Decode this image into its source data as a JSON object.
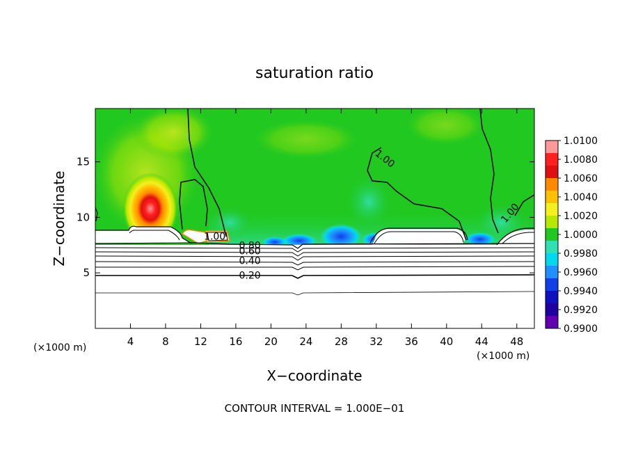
{
  "chart_data": {
    "type": "heatmap",
    "title": "saturation ratio",
    "xlabel": "X−coordinate",
    "ylabel": "Z−coordinate",
    "x_unit_left": "(×1000 m)",
    "x_unit_right": "(×1000 m)",
    "x_ticks": [
      4,
      8,
      12,
      16,
      20,
      24,
      28,
      32,
      36,
      40,
      44,
      48
    ],
    "y_ticks": [
      5,
      10,
      15
    ],
    "xlim": [
      0,
      50
    ],
    "ylim": [
      0,
      19.8
    ],
    "colorbar": {
      "ticks": [
        "1.0100",
        "1.0080",
        "1.0060",
        "1.0040",
        "1.0020",
        "1.0000",
        "0.9980",
        "0.9960",
        "0.9940",
        "0.9920",
        "0.9900"
      ],
      "colors": [
        "#ff9a9a",
        "#ff2020",
        "#e01010",
        "#ff8a00",
        "#ffc000",
        "#f4f020",
        "#b8e800",
        "#20c820",
        "#30e0b0",
        "#00d8f0",
        "#2090ff",
        "#1040e8",
        "#1010c0",
        "#2000a0",
        "#6000b0"
      ]
    },
    "contour_labels": [
      {
        "text": "1.00",
        "x": 33.0,
        "z": 15.3
      },
      {
        "text": "1.00",
        "x": 47.2,
        "z": 10.4
      },
      {
        "text": "1.00",
        "x": 13.6,
        "z": 8.3
      },
      {
        "text": "0.80",
        "x": 17.6,
        "z": 7.5
      },
      {
        "text": "0.60",
        "x": 17.6,
        "z": 7.0
      },
      {
        "text": "0.40",
        "x": 17.6,
        "z": 6.1
      },
      {
        "text": "0.20",
        "x": 17.6,
        "z": 4.8
      }
    ],
    "footer": "CONTOUR INTERVAL = 1.000E−01"
  }
}
